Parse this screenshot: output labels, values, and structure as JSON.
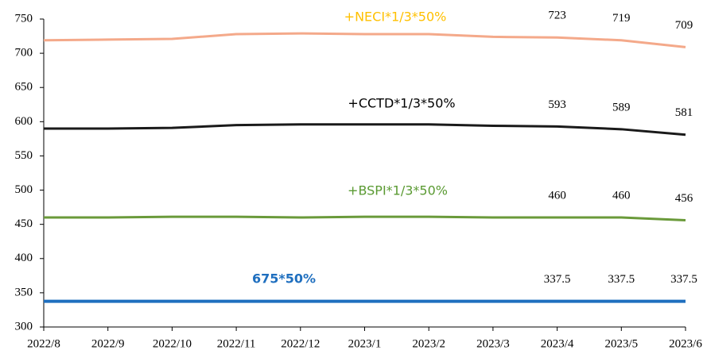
{
  "chart_data": {
    "type": "line",
    "categories": [
      "2022/8",
      "2022/9",
      "2022/10",
      "2022/11",
      "2022/12",
      "2023/1",
      "2023/2",
      "2023/3",
      "2023/4",
      "2023/5",
      "2023/6"
    ],
    "series": [
      {
        "name": "+NECI*1/3*50%",
        "color": "#f4a98a",
        "label_color": "#ffc000",
        "values": [
          719,
          720,
          721,
          728,
          729,
          728,
          728,
          724,
          723,
          719,
          709
        ],
        "value_labels": [
          null,
          null,
          null,
          null,
          null,
          null,
          null,
          null,
          "723",
          "719",
          "709"
        ]
      },
      {
        "name": "+CCTD*1/3*50%",
        "color": "#1a1a1a",
        "label_color": "#000000",
        "values": [
          590,
          590,
          591,
          595,
          596,
          596,
          596,
          594,
          593,
          589,
          581
        ],
        "value_labels": [
          null,
          null,
          null,
          null,
          null,
          null,
          null,
          null,
          "593",
          "589",
          "581"
        ]
      },
      {
        "name": "+BSPI*1/3*50%",
        "color": "#6a9a3a",
        "label_color": "#5a9a32",
        "values": [
          460,
          460,
          461,
          461,
          460,
          461,
          461,
          460,
          460,
          460,
          456
        ],
        "value_labels": [
          null,
          null,
          null,
          null,
          null,
          null,
          null,
          null,
          "460",
          "460",
          "456"
        ]
      },
      {
        "name": "675*50%",
        "color": "#1f6fbf",
        "label_color": "#1f6fbf",
        "values": [
          337.5,
          337.5,
          337.5,
          337.5,
          337.5,
          337.5,
          337.5,
          337.5,
          337.5,
          337.5,
          337.5
        ],
        "value_labels": [
          null,
          null,
          null,
          null,
          null,
          null,
          null,
          null,
          "337.5",
          "337.5",
          "337.5"
        ]
      }
    ],
    "ylim": [
      300,
      750
    ],
    "yticks": [
      300,
      350,
      400,
      450,
      500,
      550,
      600,
      650,
      700,
      750
    ],
    "grid": false
  }
}
